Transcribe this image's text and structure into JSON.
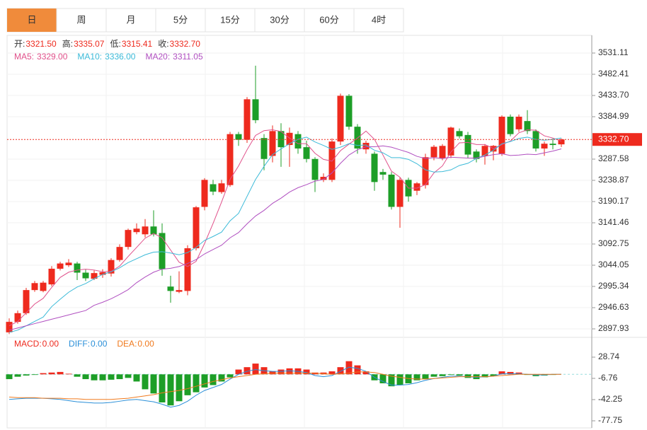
{
  "tabs": [
    "日",
    "周",
    "月",
    "5分",
    "15分",
    "30分",
    "60分",
    "4时"
  ],
  "chart_data": {
    "type": "candlestick",
    "ohlc_legend": [
      {
        "label": "开:",
        "value_label": "3321.50"
      },
      {
        "label": "高:",
        "value_label": "3335.07"
      },
      {
        "label": "低:",
        "value_label": "3315.41"
      },
      {
        "label": "收:",
        "value_label": "3332.70"
      }
    ],
    "up_color": "#ee2a1e",
    "down_color": "#1d9e27",
    "open": [
      2890,
      2914,
      2934,
      2987,
      2985,
      3000,
      3036,
      3044,
      3048,
      3027,
      3013,
      3022,
      3025,
      3056,
      3086,
      3120,
      3115,
      3133,
      3118,
      2995,
      2983,
      2985,
      3083,
      3178,
      3230,
      3212,
      3228,
      3345,
      3332,
      3425,
      3336,
      3295,
      3352,
      3320,
      3345,
      3315,
      3288,
      3240,
      3240,
      3328,
      3433,
      3362,
      3310,
      3300,
      3258,
      3252,
      3178,
      3240,
      3215,
      3228,
      3292,
      3290,
      3296,
      3352,
      3343,
      3305,
      3295,
      3305,
      3300,
      3385,
      3356,
      3375,
      3352,
      3312,
      3323,
      3321.5
    ],
    "high": [
      2922,
      2940,
      2992,
      3008,
      3008,
      3042,
      3052,
      3058,
      3052,
      3034,
      3032,
      3035,
      3060,
      3092,
      3128,
      3140,
      3150,
      3170,
      3140,
      3020,
      3030,
      3090,
      3180,
      3244,
      3240,
      3240,
      3350,
      3350,
      3430,
      3502,
      3345,
      3365,
      3370,
      3360,
      3352,
      3330,
      3292,
      3255,
      3335,
      3438,
      3437,
      3368,
      3330,
      3305,
      3265,
      3258,
      3245,
      3245,
      3235,
      3300,
      3320,
      3322,
      3362,
      3358,
      3350,
      3310,
      3322,
      3320,
      3388,
      3390,
      3390,
      3400,
      3356,
      3328,
      3335,
      3335.07
    ],
    "low": [
      2886,
      2910,
      2930,
      2983,
      2982,
      2996,
      3032,
      3040,
      3010,
      3008,
      3010,
      3015,
      3018,
      3052,
      3080,
      3115,
      3108,
      3110,
      3020,
      2958,
      2980,
      2975,
      3078,
      3170,
      3205,
      3208,
      3224,
      3318,
      3325,
      3370,
      3262,
      3280,
      3270,
      3270,
      3300,
      3280,
      3212,
      3235,
      3235,
      3320,
      3355,
      3300,
      3300,
      3215,
      3240,
      3172,
      3130,
      3190,
      3205,
      3220,
      3285,
      3285,
      3290,
      3335,
      3290,
      3280,
      3275,
      3285,
      3295,
      3340,
      3350,
      3345,
      3305,
      3295,
      3310,
      3315.41
    ],
    "close": [
      2914,
      2934,
      2987,
      3003,
      3004,
      3036,
      3048,
      3050,
      3027,
      3014,
      3026,
      3028,
      3056,
      3086,
      3125,
      3128,
      3133,
      3115,
      3035,
      2985,
      2987,
      3083,
      3177,
      3240,
      3213,
      3232,
      3345,
      3332,
      3425,
      3377,
      3288,
      3352,
      3315,
      3348,
      3312,
      3288,
      3240,
      3247,
      3328,
      3433,
      3362,
      3312,
      3325,
      3235,
      3252,
      3178,
      3240,
      3202,
      3232,
      3292,
      3316,
      3318,
      3360,
      3340,
      3298,
      3288,
      3318,
      3318,
      3385,
      3345,
      3385,
      3352,
      3312,
      3323,
      3320,
      3332.7
    ],
    "series": [
      {
        "name": "MA5:",
        "last_label": "3329.00",
        "color": "#e0508a",
        "values": [
          2905,
          2915,
          2935,
          2955,
          2968,
          2993,
          3016,
          3028,
          3033,
          3035,
          3033,
          3029,
          3030,
          3042,
          3064,
          3085,
          3106,
          3117,
          3107,
          3079,
          3051,
          3041,
          3053,
          3094,
          3140,
          3189,
          3241,
          3272,
          3309,
          3342,
          3353,
          3355,
          3351,
          3336,
          3323,
          3323,
          3301,
          3287,
          3283,
          3307,
          3322,
          3336,
          3352,
          3333,
          3297,
          3260,
          3246,
          3221,
          3221,
          3229,
          3256,
          3272,
          3304,
          3325,
          3326,
          3321,
          3321,
          3312,
          3321,
          3329,
          3348,
          3355,
          3354,
          3341,
          3336,
          3329
        ]
      },
      {
        "name": "MA10:",
        "last_label": "3336.00",
        "color": "#3bbad8",
        "values": [
          2890,
          2895,
          2905,
          2915,
          2925,
          2949,
          2966,
          2982,
          2994,
          3002,
          3013,
          3023,
          3029,
          3038,
          3050,
          3059,
          3068,
          3074,
          3075,
          3072,
          3068,
          3073,
          3085,
          3101,
          3110,
          3120,
          3146,
          3163,
          3202,
          3241,
          3271,
          3298,
          3311,
          3323,
          3333,
          3338,
          3327,
          3319,
          3310,
          3315,
          3323,
          3319,
          3320,
          3308,
          3302,
          3291,
          3291,
          3287,
          3277,
          3263,
          3258,
          3259,
          3263,
          3273,
          3278,
          3289,
          3297,
          3308,
          3323,
          3328,
          3335,
          3338,
          3333,
          3331,
          3333,
          3336
        ]
      },
      {
        "name": "MA20:",
        "last_label": "3311.05",
        "color": "#b04fc0",
        "values": [
          2895,
          2900,
          2905,
          2910,
          2915,
          2920,
          2925,
          2930,
          2935,
          2940,
          2952,
          2959,
          2967,
          2977,
          2988,
          3004,
          3017,
          3028,
          3035,
          3037,
          3041,
          3048,
          3057,
          3070,
          3080,
          3090,
          3107,
          3119,
          3139,
          3157,
          3170,
          3186,
          3198,
          3212,
          3222,
          3229,
          3237,
          3241,
          3256,
          3278,
          3297,
          3309,
          3316,
          3316,
          3318,
          3315,
          3309,
          3303,
          3294,
          3289,
          3291,
          3289,
          3292,
          3291,
          3290,
          3290,
          3294,
          3298,
          3300,
          3296,
          3297,
          3299,
          3298,
          3302,
          3306,
          3311.05
        ]
      }
    ],
    "ylim": [
      2881.7,
      3571.7
    ],
    "yticks": [
      3531.11,
      3482.41,
      {
        "value": 3433.7,
        "label": "3433.70"
      },
      3384.99,
      3287.58,
      3238.87,
      3190.17,
      3141.46,
      3092.75,
      3044.05,
      2995.34,
      2946.63,
      2897.93
    ],
    "price_line": {
      "value": 3332.7,
      "label": "3332.70",
      "color": "#ee2a1e"
    },
    "macd": {
      "type": "macd",
      "ylim": [
        -89.6,
        60.7
      ],
      "yticks": [
        28.74,
        -6.76,
        -42.25,
        -77.75
      ],
      "hist": {
        "name": "MACD:",
        "last_label": "0.00",
        "color": "#ee2a1e",
        "values": [
          -8,
          -4,
          -2,
          -1,
          2,
          3,
          4,
          1,
          -4,
          -8,
          -10,
          -10,
          -9,
          -8,
          -6,
          -12,
          -25,
          -32,
          -47,
          -52,
          -45,
          -35,
          -30,
          -22,
          -18,
          -12,
          -5,
          8,
          12,
          18,
          12,
          5,
          8,
          10,
          10,
          8,
          3,
          3,
          5,
          12,
          22,
          15,
          5,
          -10,
          -15,
          -20,
          -18,
          -15,
          -10,
          -8,
          -4,
          -3,
          -1,
          -2,
          -6,
          -8,
          -5,
          -3,
          5,
          4,
          3,
          -1,
          -3,
          -2,
          -1,
          0
        ]
      },
      "lines": [
        {
          "name": "DIFF:",
          "last_label": "0.00",
          "color": "#2a8fd8",
          "values": [
            -42,
            -41,
            -40,
            -40,
            -40,
            -41,
            -42,
            -44,
            -46,
            -47,
            -48,
            -48,
            -47,
            -45,
            -43,
            -42,
            -44,
            -46,
            -50,
            -55,
            -52,
            -45,
            -35,
            -27,
            -22,
            -17,
            -8,
            0,
            5,
            8,
            6,
            5,
            5,
            6,
            5,
            3,
            -2,
            -4,
            -2,
            5,
            12,
            10,
            5,
            -5,
            -12,
            -18,
            -18,
            -17,
            -14,
            -10,
            -7,
            -5,
            -3,
            -3,
            -4,
            -5,
            -4,
            -3,
            1,
            1,
            1,
            0,
            -1,
            -1,
            0,
            0
          ]
        },
        {
          "name": "DEA:",
          "last_label": "0.00",
          "color": "#f07a1e",
          "values": [
            -38,
            -39,
            -39,
            -39,
            -40,
            -40,
            -40,
            -41,
            -41,
            -42,
            -42,
            -42,
            -42,
            -41,
            -40,
            -38,
            -36,
            -34,
            -31,
            -29,
            -27,
            -24,
            -20,
            -16,
            -12,
            -9,
            -6,
            -4,
            -2,
            0,
            1,
            2,
            2,
            2,
            2,
            2,
            2,
            1,
            0,
            1,
            2,
            4,
            4,
            3,
            0,
            -3,
            -5,
            -7,
            -8,
            -8,
            -7,
            -6,
            -5,
            -4,
            -4,
            -4,
            -4,
            -3,
            -2,
            -1,
            0,
            0,
            0,
            0,
            0,
            0
          ]
        }
      ]
    }
  }
}
